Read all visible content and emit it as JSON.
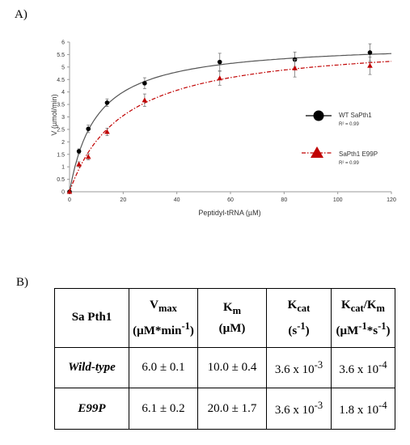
{
  "panel_a_label": "A)",
  "panel_b_label": "B)",
  "chart_data": {
    "type": "line",
    "xlabel": "Peptidyl-tRNA (µM)",
    "ylabel": "V (µmol/min)",
    "xlim": [
      0,
      120
    ],
    "ylim": [
      0,
      6
    ],
    "xticks": [
      0,
      20,
      40,
      60,
      80,
      100,
      120
    ],
    "yticks": [
      0,
      0.5,
      1,
      1.5,
      2,
      2.5,
      3,
      3.5,
      4,
      4.5,
      5,
      5.5,
      6
    ],
    "grid": false,
    "legend_position": "right",
    "series": [
      {
        "name": "WT SaPth1",
        "r2": "R² = 0.99",
        "color": "#000000",
        "marker": "circle",
        "x": [
          0,
          3.5,
          7,
          14,
          28,
          56,
          84,
          112
        ],
        "y": [
          0,
          1.62,
          2.52,
          3.57,
          4.35,
          5.2,
          5.3,
          5.58
        ],
        "err": [
          0,
          0.1,
          0.15,
          0.15,
          0.22,
          0.35,
          0.3,
          0.35
        ],
        "fit": {
          "vmax": 6.0,
          "km": 10.0
        }
      },
      {
        "name": "SaPth1 E99P",
        "r2": "R² = 0.99",
        "color": "#c00000",
        "marker": "triangle",
        "x": [
          0,
          3.5,
          7,
          14,
          28,
          56,
          84,
          112
        ],
        "y": [
          0,
          1.1,
          1.4,
          2.4,
          3.67,
          4.55,
          4.95,
          5.05
        ],
        "err": [
          0,
          0.1,
          0.12,
          0.15,
          0.25,
          0.28,
          0.35,
          0.35
        ],
        "fit": {
          "vmax": 6.1,
          "km": 20.0
        }
      }
    ]
  },
  "table": {
    "corner": "Sa Pth1",
    "headers": [
      {
        "main": "V",
        "sub": "max",
        "unit_pre": "(µM*min",
        "unit_sup": "-1",
        "unit_post": ")"
      },
      {
        "main": "K",
        "sub": "m",
        "unit_pre": "(µM)",
        "unit_sup": "",
        "unit_post": ""
      },
      {
        "main": "K",
        "sub": "cat",
        "unit_pre": "(s",
        "unit_sup": "-1",
        "unit_post": ")"
      },
      {
        "main": "K",
        "sub": "cat",
        "main2": "/K",
        "sub2": "m",
        "unit_pre": "(µM",
        "unit_sup": "-1",
        "unit_mid": "*s",
        "unit_sup2": "-1",
        "unit_post": ")"
      }
    ],
    "rows": [
      {
        "label": "Wild-type",
        "vmax": "6.0 ± 0.1",
        "km": "10.0 ± 0.4",
        "kcat_base": "3.6 x 10",
        "kcat_exp": "-3",
        "eff_base": "3.6 x 10",
        "eff_exp": "-4"
      },
      {
        "label": "E99P",
        "vmax": "6.1 ± 0.2",
        "km": "20.0 ± 1.7",
        "kcat_base": "3.6 x 10",
        "kcat_exp": "-3",
        "eff_base": "1.8 x 10",
        "eff_exp": "-4"
      }
    ]
  }
}
